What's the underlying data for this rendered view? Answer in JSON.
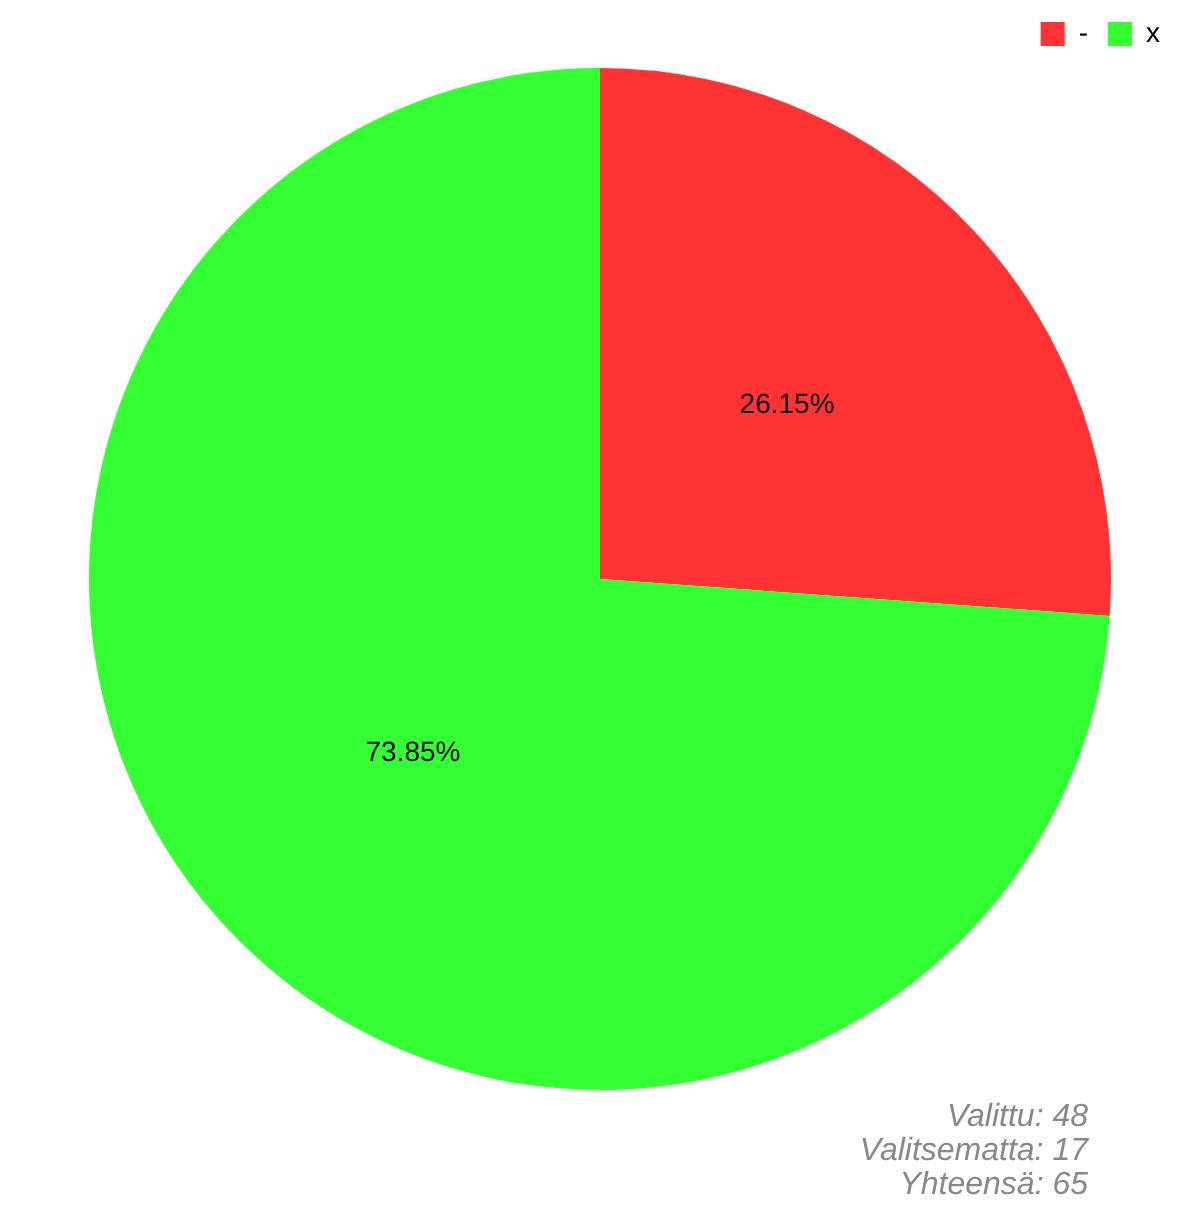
{
  "chart_data": {
    "type": "pie",
    "categories": [
      "-",
      "x"
    ],
    "values": [
      26.15,
      73.85
    ],
    "colors": [
      "#ff3333",
      "#33ff33"
    ],
    "value_labels": [
      "26.15%",
      "73.85%"
    ],
    "legend": "top right",
    "annotations": [
      "Valittu: 48",
      "Valitsematta: 17",
      "Yhteensä: 65"
    ]
  }
}
